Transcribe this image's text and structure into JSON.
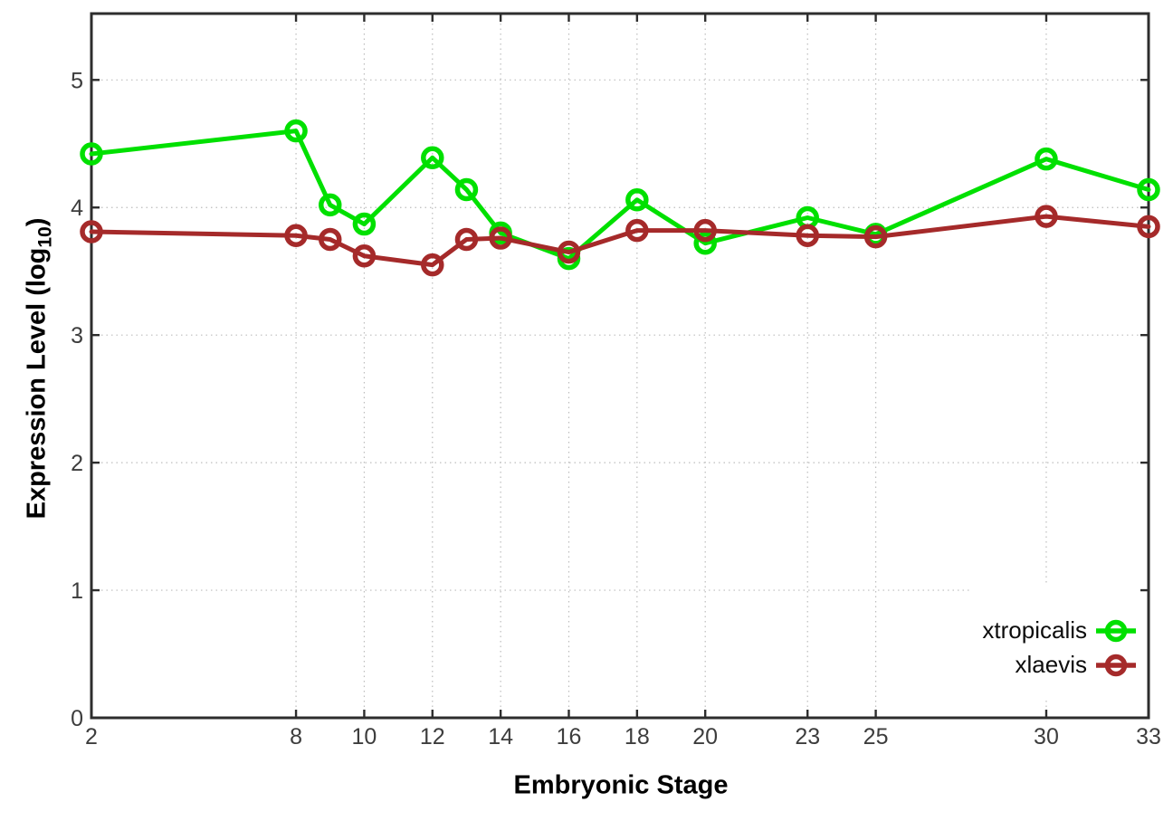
{
  "chart_data": {
    "type": "line",
    "title": "",
    "xlabel": "Embryonic Stage",
    "ylabel": {
      "prefix": "Expression Level (log",
      "sub": "10",
      "suffix": ")"
    },
    "x": [
      2,
      8,
      9,
      10,
      12,
      13,
      14,
      16,
      18,
      20,
      23,
      25,
      30,
      33
    ],
    "series": [
      {
        "name": "xtropicalis",
        "color": "#00e000",
        "marker": "open-circle",
        "values": [
          4.42,
          4.6,
          4.02,
          3.87,
          4.39,
          4.14,
          3.8,
          3.6,
          4.06,
          3.72,
          3.92,
          3.79,
          4.38,
          4.14
        ]
      },
      {
        "name": "xlaevis",
        "color": "#a52a2a",
        "marker": "open-circle",
        "values": [
          3.81,
          3.78,
          3.75,
          3.62,
          3.55,
          3.75,
          3.76,
          3.65,
          3.82,
          3.82,
          3.78,
          3.77,
          3.93,
          3.85
        ]
      }
    ],
    "x_ticks": [
      2,
      8,
      10,
      12,
      14,
      16,
      18,
      20,
      23,
      25,
      30,
      33
    ],
    "y_ticks": [
      0,
      1,
      2,
      3,
      4,
      5
    ],
    "xlim": [
      2,
      33
    ],
    "ylim": [
      0,
      5.52
    ],
    "grid": true,
    "legend_position": "inside right bottom"
  },
  "colors": {
    "background": "#ffffff",
    "border": "#2d2d2d",
    "grid": "#bdbdbd",
    "tick_label": "#3d3d3d"
  }
}
